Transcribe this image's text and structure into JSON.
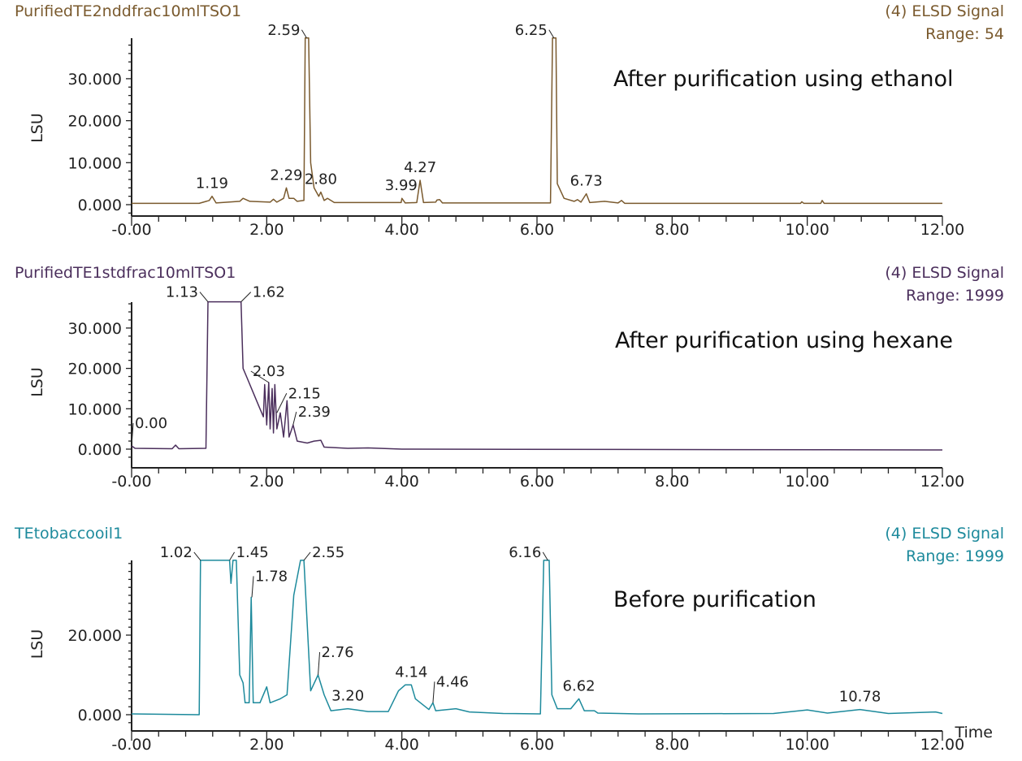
{
  "chart_data": [
    {
      "type": "line",
      "sample_name": "PurifiedTE2nddfrac10mlTSO1",
      "signal": "(4) ELSD Signal",
      "range": "Range: 54",
      "annotation": "After purification using ethanol",
      "ylabel": "LSU",
      "xlabel": "",
      "color": "#7a5a2e",
      "xlim": [
        0,
        12
      ],
      "ylim": [
        -2.5,
        39.7
      ],
      "x_ticks": [
        "-0.00",
        "2.00",
        "4.00",
        "6.00",
        "8.00",
        "10.00",
        "12.00"
      ],
      "y_ticks": [
        "0.000",
        "10.000",
        "20.000",
        "30.000"
      ],
      "y_tick_values": [
        0,
        10,
        20,
        30
      ],
      "peak_labels": [
        {
          "text": "1.19",
          "t": 1.19,
          "h": 2.0
        },
        {
          "text": "2.29",
          "t": 2.29,
          "h": 4.0
        },
        {
          "text": "2.59",
          "t": 2.59,
          "h": 39.7
        },
        {
          "text": "2.80",
          "t": 2.8,
          "h": 3.0
        },
        {
          "text": "3.99",
          "t": 3.99,
          "h": 1.5
        },
        {
          "text": "4.27",
          "t": 4.27,
          "h": 5.8
        },
        {
          "text": "6.25",
          "t": 6.25,
          "h": 39.7
        },
        {
          "text": "6.73",
          "t": 6.73,
          "h": 2.6
        }
      ],
      "trace": [
        [
          0,
          0.3
        ],
        [
          1.0,
          0.3
        ],
        [
          1.15,
          1.0
        ],
        [
          1.19,
          2.0
        ],
        [
          1.25,
          0.4
        ],
        [
          1.6,
          0.8
        ],
        [
          1.65,
          1.5
        ],
        [
          1.75,
          0.8
        ],
        [
          2.05,
          0.6
        ],
        [
          2.1,
          1.3
        ],
        [
          2.15,
          0.6
        ],
        [
          2.25,
          1.5
        ],
        [
          2.29,
          4.0
        ],
        [
          2.33,
          1.5
        ],
        [
          2.4,
          1.5
        ],
        [
          2.45,
          0.8
        ],
        [
          2.55,
          1
        ],
        [
          2.57,
          39.7
        ],
        [
          2.62,
          39.7
        ],
        [
          2.65,
          10
        ],
        [
          2.7,
          4
        ],
        [
          2.77,
          2
        ],
        [
          2.8,
          3
        ],
        [
          2.85,
          1
        ],
        [
          2.9,
          1.5
        ],
        [
          3.0,
          0.5
        ],
        [
          3.99,
          0.5
        ],
        [
          4.0,
          1.5
        ],
        [
          4.05,
          0.4
        ],
        [
          4.22,
          0.5
        ],
        [
          4.27,
          5.8
        ],
        [
          4.32,
          0.5
        ],
        [
          4.5,
          0.6
        ],
        [
          4.52,
          1.1
        ],
        [
          4.56,
          1.2
        ],
        [
          4.6,
          0.4
        ],
        [
          6.2,
          0.4
        ],
        [
          6.23,
          39.7
        ],
        [
          6.28,
          39.7
        ],
        [
          6.3,
          5
        ],
        [
          6.4,
          1.5
        ],
        [
          6.55,
          0.8
        ],
        [
          6.6,
          1.2
        ],
        [
          6.65,
          0.6
        ],
        [
          6.73,
          2.6
        ],
        [
          6.78,
          0.5
        ],
        [
          7.0,
          0.8
        ],
        [
          7.2,
          0.4
        ],
        [
          7.25,
          1
        ],
        [
          7.3,
          0.3
        ],
        [
          9.9,
          0.3
        ],
        [
          9.92,
          0.7
        ],
        [
          9.95,
          0.3
        ],
        [
          10.2,
          0.3
        ],
        [
          10.22,
          1
        ],
        [
          10.25,
          0.3
        ],
        [
          12,
          0.3
        ]
      ]
    },
    {
      "type": "line",
      "sample_name": "PurifiedTE1stdfrac10mlTSO1",
      "signal": "(4) ELSD Signal",
      "range": "Range: 1999",
      "annotation": "After purification using hexane",
      "ylabel": "LSU",
      "xlabel": "",
      "color": "#4b2f5c",
      "xlim": [
        0,
        12
      ],
      "ylim": [
        -4,
        36.5
      ],
      "x_ticks": [
        "-0.00",
        "2.00",
        "4.00",
        "6.00",
        "8.00",
        "10.00",
        "12.00"
      ],
      "y_ticks": [
        "0.000",
        "10.000",
        "20.000",
        "30.000"
      ],
      "y_tick_values": [
        0,
        10,
        20,
        30
      ],
      "peak_labels": [
        {
          "text": "0.00",
          "t": 0.0,
          "h": 0.8
        },
        {
          "text": "1.13",
          "t": 1.13,
          "h": 36.5
        },
        {
          "text": "1.62",
          "t": 1.62,
          "h": 36.5
        },
        {
          "text": "2.03",
          "t": 2.03,
          "h": 16.5
        },
        {
          "text": "2.15",
          "t": 2.15,
          "h": 9
        },
        {
          "text": "2.39",
          "t": 2.39,
          "h": 6
        }
      ],
      "trace": [
        [
          0,
          0.8
        ],
        [
          0.05,
          0.2
        ],
        [
          0.6,
          0.1
        ],
        [
          0.65,
          1
        ],
        [
          0.7,
          0.1
        ],
        [
          1.1,
          0.2
        ],
        [
          1.13,
          36.5
        ],
        [
          1.62,
          36.5
        ],
        [
          1.65,
          20
        ],
        [
          1.7,
          18
        ],
        [
          1.8,
          14
        ],
        [
          1.9,
          10
        ],
        [
          1.95,
          8
        ],
        [
          1.97,
          16
        ],
        [
          2.0,
          6
        ],
        [
          2.03,
          16.5
        ],
        [
          2.05,
          5
        ],
        [
          2.08,
          15
        ],
        [
          2.1,
          4
        ],
        [
          2.12,
          16
        ],
        [
          2.15,
          5
        ],
        [
          2.2,
          9
        ],
        [
          2.25,
          3
        ],
        [
          2.3,
          12
        ],
        [
          2.33,
          3
        ],
        [
          2.39,
          6
        ],
        [
          2.45,
          2
        ],
        [
          2.6,
          1.5
        ],
        [
          2.7,
          2
        ],
        [
          2.8,
          2.2
        ],
        [
          2.85,
          0.5
        ],
        [
          3.2,
          0.2
        ],
        [
          3.5,
          0.3
        ],
        [
          4,
          0
        ],
        [
          12,
          -0.2
        ]
      ]
    },
    {
      "type": "line",
      "sample_name": "TEtobaccooil1",
      "signal": "(4) ELSD Signal",
      "range": "Range: 1999",
      "annotation": "Before purification",
      "ylabel": "LSU",
      "xlabel": "Time",
      "color": "#1d8a9c",
      "xlim": [
        0,
        12
      ],
      "ylim": [
        -4,
        38.8
      ],
      "x_ticks": [
        "-0.00",
        "2.00",
        "4.00",
        "6.00",
        "8.00",
        "10.00",
        "12.00"
      ],
      "y_ticks": [
        "0.000",
        "20.000"
      ],
      "y_tick_values": [
        0,
        20
      ],
      "peak_labels": [
        {
          "text": "1.02",
          "t": 1.02,
          "h": 38.8
        },
        {
          "text": "1.45",
          "t": 1.45,
          "h": 38.8
        },
        {
          "text": "1.78",
          "t": 1.78,
          "h": 29.5
        },
        {
          "text": "2.55",
          "t": 2.55,
          "h": 38.8
        },
        {
          "text": "2.76",
          "t": 2.76,
          "h": 10
        },
        {
          "text": "3.20",
          "t": 3.2,
          "h": 1.5
        },
        {
          "text": "4.14",
          "t": 4.14,
          "h": 7.5
        },
        {
          "text": "4.46",
          "t": 4.46,
          "h": 3
        },
        {
          "text": "6.16",
          "t": 6.16,
          "h": 38.8
        },
        {
          "text": "6.62",
          "t": 6.62,
          "h": 4
        },
        {
          "text": "10.78",
          "t": 10.78,
          "h": 1.3
        }
      ],
      "trace": [
        [
          0,
          0.2
        ],
        [
          1.0,
          0
        ],
        [
          1.02,
          38.8
        ],
        [
          1.45,
          38.8
        ],
        [
          1.47,
          33
        ],
        [
          1.5,
          38.8
        ],
        [
          1.55,
          38.8
        ],
        [
          1.6,
          10
        ],
        [
          1.65,
          8
        ],
        [
          1.68,
          3
        ],
        [
          1.74,
          3
        ],
        [
          1.77,
          29.5
        ],
        [
          1.8,
          3
        ],
        [
          1.9,
          3
        ],
        [
          2.0,
          7
        ],
        [
          2.05,
          3
        ],
        [
          2.2,
          4
        ],
        [
          2.3,
          5
        ],
        [
          2.4,
          30
        ],
        [
          2.5,
          38.8
        ],
        [
          2.55,
          38.8
        ],
        [
          2.65,
          6
        ],
        [
          2.76,
          10
        ],
        [
          2.85,
          5
        ],
        [
          2.95,
          1
        ],
        [
          3.2,
          1.5
        ],
        [
          3.5,
          0.8
        ],
        [
          3.8,
          0.8
        ],
        [
          3.95,
          6
        ],
        [
          4.05,
          7.5
        ],
        [
          4.14,
          7.5
        ],
        [
          4.2,
          4
        ],
        [
          4.4,
          1.3
        ],
        [
          4.46,
          3
        ],
        [
          4.5,
          1
        ],
        [
          4.8,
          1.5
        ],
        [
          5.0,
          0.7
        ],
        [
          5.5,
          0.3
        ],
        [
          6.05,
          0.2
        ],
        [
          6.1,
          38.8
        ],
        [
          6.18,
          38.8
        ],
        [
          6.22,
          5
        ],
        [
          6.3,
          1.5
        ],
        [
          6.5,
          1.5
        ],
        [
          6.62,
          4
        ],
        [
          6.7,
          1
        ],
        [
          6.85,
          1
        ],
        [
          6.9,
          0.4
        ],
        [
          7.5,
          0.2
        ],
        [
          9.5,
          0.3
        ],
        [
          10.0,
          1.2
        ],
        [
          10.3,
          0.4
        ],
        [
          10.78,
          1.3
        ],
        [
          11.2,
          0.3
        ],
        [
          11.9,
          0.7
        ],
        [
          12,
          0.3
        ]
      ]
    }
  ]
}
